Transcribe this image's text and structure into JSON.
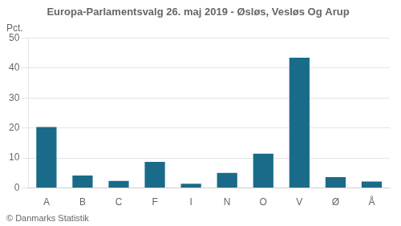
{
  "chart_data": {
    "type": "bar",
    "title": "Europa-Parlamentsvalg 26. maj 2019 - Øsløs, Vesløs Og Arup",
    "ylabel": "Pct.",
    "footer": "© Danmarks Statistik",
    "categories": [
      "A",
      "B",
      "C",
      "F",
      "I",
      "N",
      "O",
      "V",
      "Ø",
      "Å"
    ],
    "values": [
      20.3,
      4.1,
      2.3,
      8.7,
      1.4,
      5.0,
      11.4,
      43.5,
      3.6,
      2.1
    ],
    "color": "#1a6b8a",
    "ylim": [
      0,
      50
    ],
    "yticks": [
      0,
      10,
      20,
      30,
      40,
      50
    ],
    "grid": true
  }
}
